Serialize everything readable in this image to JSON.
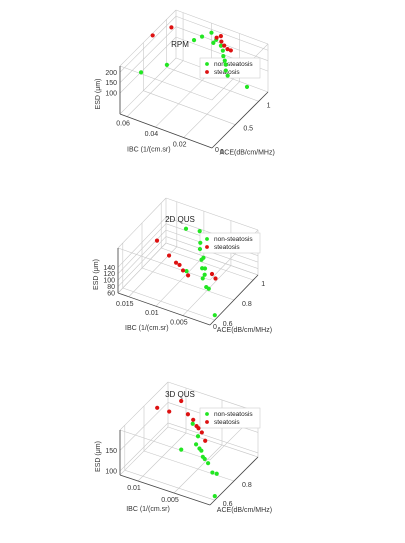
{
  "colors": {
    "non_steatosis": "#22e622",
    "steatosis": "#dd1111",
    "box": "#c8c8c8",
    "axis": "#444444"
  },
  "chart_data": [
    {
      "type": "scatter",
      "title": "RPM",
      "xlabel": "IBC (1/(cm.sr)",
      "ylabel": "ACE(dB/cm/MHz)",
      "zlabel": "ESD (μm)",
      "x_ticks": [
        "0.02",
        "0.04",
        "0.06"
      ],
      "y_ticks": [
        "0",
        "0.5",
        "1"
      ],
      "z_ticks": [
        "100",
        "150",
        "200"
      ],
      "x_zero_label": "0",
      "legend": [
        "non-steatosis",
        "steatosis"
      ],
      "series": [
        {
          "name": "non-steatosis",
          "points": [
            [
              0.0,
              0.75,
              125
            ],
            [
              0.012,
              0.7,
              160
            ],
            [
              0.014,
              0.72,
              175
            ],
            [
              0.016,
              0.78,
              185
            ],
            [
              0.018,
              0.82,
              190
            ],
            [
              0.02,
              0.85,
              200
            ],
            [
              0.022,
              0.9,
              210
            ],
            [
              0.025,
              0.95,
              215
            ],
            [
              0.03,
              1.0,
              220
            ],
            [
              0.032,
              1.0,
              200
            ],
            [
              0.035,
              1.05,
              230
            ],
            [
              0.04,
              1.0,
              210
            ],
            [
              0.045,
              0.98,
              185
            ],
            [
              0.05,
              0.55,
              150
            ],
            [
              0.06,
              0.3,
              145
            ]
          ]
        },
        {
          "name": "steatosis",
          "points": [
            [
              0.018,
              0.95,
              210
            ],
            [
              0.022,
              1.0,
              195
            ],
            [
              0.025,
              1.02,
              200
            ],
            [
              0.028,
              1.05,
              205
            ],
            [
              0.03,
              1.1,
              215
            ],
            [
              0.033,
              1.1,
              200
            ],
            [
              0.06,
              0.95,
              215
            ],
            [
              0.065,
              0.7,
              220
            ]
          ]
        }
      ]
    },
    {
      "type": "scatter",
      "title": "2D QUS",
      "xlabel": "IBC (1/(cm.sr)",
      "ylabel": "ACE(dB/cm/MHz)",
      "zlabel": "ESD (μm)",
      "x_ticks": [
        "0.005",
        "0.01",
        "0.015"
      ],
      "y_ticks": [
        "0.6",
        "0.8",
        "1"
      ],
      "z_ticks": [
        "60",
        "80",
        "100",
        "120",
        "140"
      ],
      "x_zero_label": "0",
      "legend": [
        "non-steatosis",
        "steatosis"
      ],
      "series": [
        {
          "name": "non-steatosis",
          "points": [
            [
              0.0,
              0.6,
              75
            ],
            [
              0.002,
              0.65,
              130
            ],
            [
              0.003,
              0.68,
              120
            ],
            [
              0.004,
              0.7,
              135
            ],
            [
              0.004,
              0.72,
              140
            ],
            [
              0.005,
              0.75,
              145
            ],
            [
              0.005,
              0.78,
              135
            ],
            [
              0.006,
              0.8,
              150
            ],
            [
              0.006,
              0.82,
              150
            ],
            [
              0.007,
              0.84,
              165
            ],
            [
              0.008,
              0.9,
              160
            ],
            [
              0.009,
              0.95,
              175
            ],
            [
              0.007,
              0.7,
              140
            ],
            [
              0.011,
              0.92,
              180
            ]
          ]
        },
        {
          "name": "steatosis",
          "points": [
            [
              0.002,
              0.72,
              140
            ],
            [
              0.003,
              0.74,
              142
            ],
            [
              0.006,
              0.66,
              145
            ],
            [
              0.008,
              0.72,
              130
            ],
            [
              0.009,
              0.74,
              135
            ],
            [
              0.01,
              0.76,
              130
            ],
            [
              0.012,
              0.8,
              128
            ],
            [
              0.016,
              0.9,
              120
            ]
          ]
        }
      ]
    },
    {
      "type": "scatter",
      "title": "3D QUS",
      "xlabel": "IBC (1/(cm.sr)",
      "ylabel": "ACE(dB/cm/MHz)",
      "zlabel": "ESD (μm)",
      "x_ticks": [
        "0.005",
        "0.01"
      ],
      "y_ticks": [
        "0.6",
        "0.8"
      ],
      "z_ticks": [
        "100",
        "150"
      ],
      "x_zero_label": "",
      "legend": [
        "non-steatosis",
        "steatosis"
      ],
      "series": [
        {
          "name": "non-steatosis",
          "points": [
            [
              0.0,
              0.6,
              100
            ],
            [
              0.0,
              0.62,
              150
            ],
            [
              0.001,
              0.65,
              140
            ],
            [
              0.002,
              0.68,
              150
            ],
            [
              0.003,
              0.7,
              155
            ],
            [
              0.003,
              0.72,
              145
            ],
            [
              0.004,
              0.74,
              160
            ],
            [
              0.004,
              0.76,
              150
            ],
            [
              0.005,
              0.8,
              170
            ],
            [
              0.005,
              0.78,
              155
            ],
            [
              0.006,
              0.82,
              190
            ],
            [
              0.006,
              0.7,
              155
            ]
          ]
        },
        {
          "name": "steatosis",
          "points": [
            [
              0.004,
              0.8,
              165
            ],
            [
              0.005,
              0.84,
              170
            ],
            [
              0.006,
              0.86,
              175
            ],
            [
              0.006,
              0.88,
              165
            ],
            [
              0.007,
              0.9,
              175
            ],
            [
              0.008,
              0.92,
              178
            ],
            [
              0.01,
              1.0,
              180
            ],
            [
              0.011,
              0.95,
              160
            ],
            [
              0.012,
              0.9,
              175
            ]
          ]
        }
      ]
    }
  ]
}
